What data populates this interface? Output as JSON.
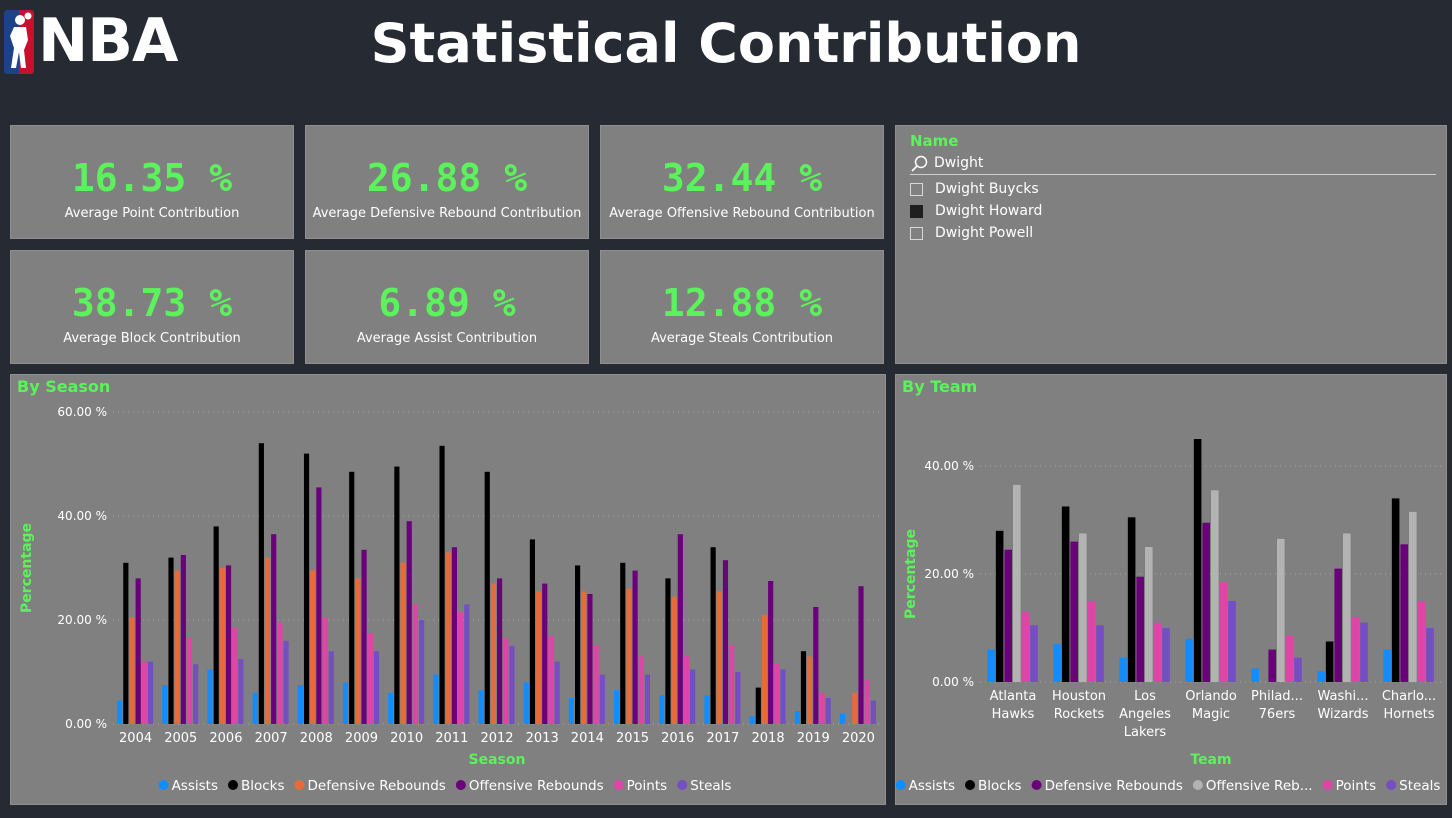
{
  "header": {
    "logo_text": "NBA",
    "title": "Statistical Contribution"
  },
  "colors": {
    "accent": "#5cf25c",
    "Assists": "#118dff",
    "Blocks": "#000000",
    "Defensive Rebounds": "#e66c37",
    "Offensive Rebounds": "#6b007b",
    "Points": "#e044a7",
    "Steals": "#744ec2",
    "OffensiveRebLight": "#b3b3b3"
  },
  "kpis": [
    {
      "value": "16.35 %",
      "label": "Average Point Contribution"
    },
    {
      "value": "26.88 %",
      "label": "Average Defensive Rebound Contribution"
    },
    {
      "value": "32.44 %",
      "label": "Average Offensive Rebound Contribution"
    },
    {
      "value": "38.73 %",
      "label": "Average Block Contribution"
    },
    {
      "value": "6.89 %",
      "label": "Average Assist Contribution"
    },
    {
      "value": "12.88 %",
      "label": "Average Steals Contribution"
    }
  ],
  "slicer": {
    "title": "Name",
    "search_value": "Dwight",
    "items": [
      {
        "label": "Dwight Buycks",
        "checked": false
      },
      {
        "label": "Dwight Howard",
        "checked": true
      },
      {
        "label": "Dwight Powell",
        "checked": false
      }
    ]
  },
  "chart_data": [
    {
      "type": "bar",
      "title": "By Season",
      "xlabel": "Season",
      "ylabel": "Percentage",
      "ylim": [
        0,
        60
      ],
      "yticks": [
        "0.00 %",
        "20.00 %",
        "40.00 %",
        "60.00 %"
      ],
      "grid": true,
      "legend": "bottom",
      "categories": [
        "2004",
        "2005",
        "2006",
        "2007",
        "2008",
        "2009",
        "2010",
        "2011",
        "2012",
        "2013",
        "2014",
        "2015",
        "2016",
        "2017",
        "2018",
        "2019",
        "2020"
      ],
      "series": [
        {
          "name": "Assists",
          "values": [
            4.5,
            7.5,
            10.5,
            6,
            7.5,
            8,
            6,
            9.5,
            6.5,
            8,
            5,
            6.5,
            5.5,
            5.5,
            1.5,
            2.5,
            2
          ]
        },
        {
          "name": "Blocks",
          "values": [
            31,
            32,
            38,
            54,
            52,
            48.5,
            49.5,
            53.5,
            48.5,
            35.5,
            30.5,
            31,
            28,
            34,
            7,
            14,
            0
          ]
        },
        {
          "name": "Defensive Rebounds",
          "values": [
            20.5,
            29.5,
            30,
            32,
            29.5,
            28,
            31,
            33,
            27,
            25.5,
            25.5,
            26,
            24.5,
            25.5,
            21,
            13,
            6
          ]
        },
        {
          "name": "Offensive Rebounds",
          "values": [
            28,
            32.5,
            30.5,
            36.5,
            45.5,
            33.5,
            39,
            34,
            28,
            27,
            25,
            29.5,
            36.5,
            31.5,
            27.5,
            22.5,
            26.5
          ]
        },
        {
          "name": "Points",
          "values": [
            12,
            16.5,
            18.5,
            19.5,
            20.5,
            17.5,
            23,
            21.5,
            16.5,
            17,
            15,
            13,
            13,
            15,
            11.5,
            6,
            8.5
          ]
        },
        {
          "name": "Steals",
          "values": [
            12,
            11.5,
            12.5,
            16,
            14,
            14,
            20,
            23,
            15,
            12,
            9.5,
            9.5,
            10.5,
            10,
            10.5,
            5,
            4.5
          ]
        }
      ]
    },
    {
      "type": "bar",
      "title": "By Team",
      "xlabel": "Team",
      "ylabel": "Percentage",
      "ylim": [
        0,
        40
      ],
      "yticks": [
        "0.00 %",
        "20.00 %",
        "40.00 %"
      ],
      "grid": true,
      "legend": "bottom",
      "categories": [
        [
          "Atlanta",
          "Hawks"
        ],
        [
          "Houston",
          "Rockets"
        ],
        [
          "Los",
          "Angeles",
          "Lakers"
        ],
        [
          "Orlando",
          "Magic"
        ],
        [
          "Philad...",
          "76ers"
        ],
        [
          "Washi...",
          "Wizards"
        ],
        [
          "Charlo...",
          "Hornets"
        ]
      ],
      "legend_labels": [
        "Assists",
        "Blocks",
        "Defensive Rebounds",
        "Offensive Reb...",
        "Points",
        "Steals"
      ],
      "series": [
        {
          "name": "Assists",
          "values": [
            6,
            7,
            4.5,
            8,
            2.5,
            2,
            6
          ]
        },
        {
          "name": "Blocks",
          "values": [
            28,
            32.5,
            30.5,
            45,
            0,
            7.5,
            34
          ]
        },
        {
          "name": "Defensive Rebounds",
          "values": [
            24.5,
            26,
            19.5,
            29.5,
            6,
            21,
            25.5
          ]
        },
        {
          "name": "Offensive Rebounds",
          "values": [
            36.5,
            27.5,
            25,
            35.5,
            26.5,
            27.5,
            31.5
          ]
        },
        {
          "name": "Points",
          "values": [
            13,
            15,
            11,
            18.5,
            8.5,
            12,
            15
          ]
        },
        {
          "name": "Steals",
          "values": [
            10.5,
            10.5,
            10,
            15,
            4.5,
            11,
            10
          ]
        }
      ]
    }
  ]
}
